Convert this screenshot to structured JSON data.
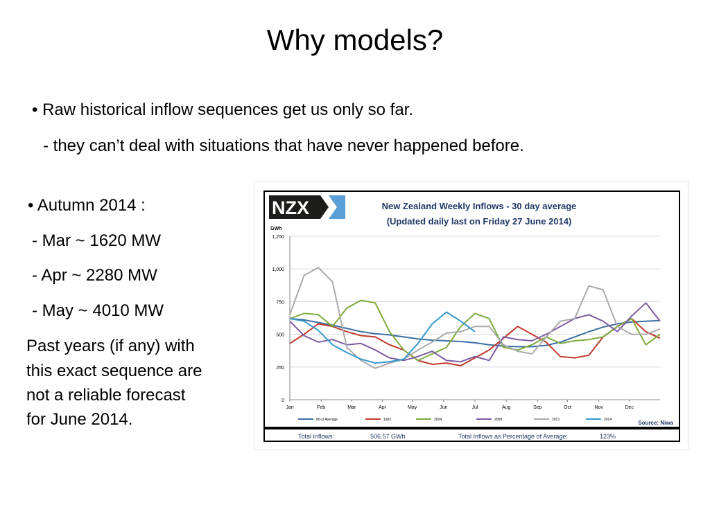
{
  "slide": {
    "title": "Why models?",
    "bullets": [
      "• Raw historical inflow sequences get us only so far.",
      "- they can’t deal with situations that have never happened before."
    ],
    "left": [
      "• Autumn 2014  :",
      "- Mar   ~ 1620 MW",
      "- Apr   ~ 2280 MW",
      "- May  ~ 4010 MW"
    ],
    "paragraph": [
      "Past years (if any) with",
      "this exact sequence are",
      "not a reliable forecast",
      "for June 2014."
    ]
  },
  "chart_data": {
    "type": "line",
    "logo": "NZX",
    "title": "New Zealand Weekly Inflows - 30 day average",
    "subtitle": "(Updated daily last on Friday 27 June 2014)",
    "y_label": "GWh",
    "source": "Source: Niwa",
    "x": [
      0,
      2,
      4,
      6,
      8,
      10,
      12,
      14,
      16,
      18,
      20,
      22,
      24,
      26,
      28,
      30,
      32,
      34,
      36,
      38,
      40,
      42,
      44,
      46,
      48,
      50,
      52
    ],
    "xlim": [
      0,
      52
    ],
    "xticks": [
      {
        "value": 0,
        "label": "Jan"
      },
      {
        "value": 4.4,
        "label": "Feb"
      },
      {
        "value": 8.7,
        "label": "Mar"
      },
      {
        "value": 13,
        "label": "Apr"
      },
      {
        "value": 17.2,
        "label": "May"
      },
      {
        "value": 21.6,
        "label": "Jun"
      },
      {
        "value": 26,
        "label": "Jul"
      },
      {
        "value": 30.4,
        "label": "Aug"
      },
      {
        "value": 34.8,
        "label": "Sep"
      },
      {
        "value": 39,
        "label": "Oct"
      },
      {
        "value": 43.4,
        "label": "Nov"
      },
      {
        "value": 47.7,
        "label": "Dec"
      }
    ],
    "ylim": [
      0,
      1250
    ],
    "yticks": [
      0,
      250,
      500,
      750,
      {
        "value": 1000,
        "label": "1,000"
      },
      {
        "value": 1250,
        "label": "1,250"
      }
    ],
    "grid": true,
    "series": [
      {
        "name": "80-yr Average",
        "color": "#3a6ea5",
        "values": [
          620,
          610,
          590,
          570,
          545,
          520,
          505,
          495,
          480,
          465,
          455,
          450,
          445,
          435,
          420,
          410,
          405,
          405,
          415,
          440,
          480,
          520,
          555,
          580,
          595,
          600,
          605
        ]
      },
      {
        "name": "1992",
        "color": "#c0392b",
        "values": [
          430,
          500,
          580,
          560,
          520,
          490,
          480,
          420,
          380,
          300,
          270,
          280,
          260,
          320,
          380,
          470,
          560,
          500,
          440,
          330,
          320,
          340,
          480,
          560,
          620,
          520,
          470
        ]
      },
      {
        "name": "2004",
        "color": "#7daa3c",
        "values": [
          620,
          660,
          650,
          560,
          700,
          760,
          740,
          520,
          380,
          300,
          350,
          400,
          560,
          660,
          620,
          400,
          380,
          420,
          480,
          430,
          450,
          460,
          480,
          560,
          620,
          420,
          500
        ]
      },
      {
        "name": "2008",
        "color": "#7b5ca0",
        "values": [
          600,
          490,
          440,
          460,
          420,
          430,
          380,
          320,
          300,
          330,
          370,
          300,
          290,
          330,
          300,
          480,
          460,
          450,
          500,
          560,
          620,
          650,
          600,
          520,
          640,
          740,
          600
        ]
      },
      {
        "name": "2013",
        "color": "#aaaaaa",
        "values": [
          650,
          950,
          1010,
          900,
          400,
          300,
          240,
          280,
          310,
          380,
          440,
          510,
          520,
          560,
          560,
          420,
          370,
          350,
          480,
          600,
          620,
          870,
          840,
          560,
          500,
          500,
          540
        ]
      },
      {
        "name": "2014",
        "color": "#3399cc",
        "values": [
          620,
          600,
          530,
          420,
          360,
          310,
          280,
          290,
          310,
          430,
          580,
          670,
          600,
          520,
          null,
          null,
          null,
          null,
          null,
          null,
          null,
          null,
          null,
          null,
          null,
          null,
          null
        ]
      }
    ],
    "footer": [
      "Total Inflows:",
      "506.57 GWh",
      "Total Inflows as Percentage of Average:",
      "123%"
    ]
  }
}
